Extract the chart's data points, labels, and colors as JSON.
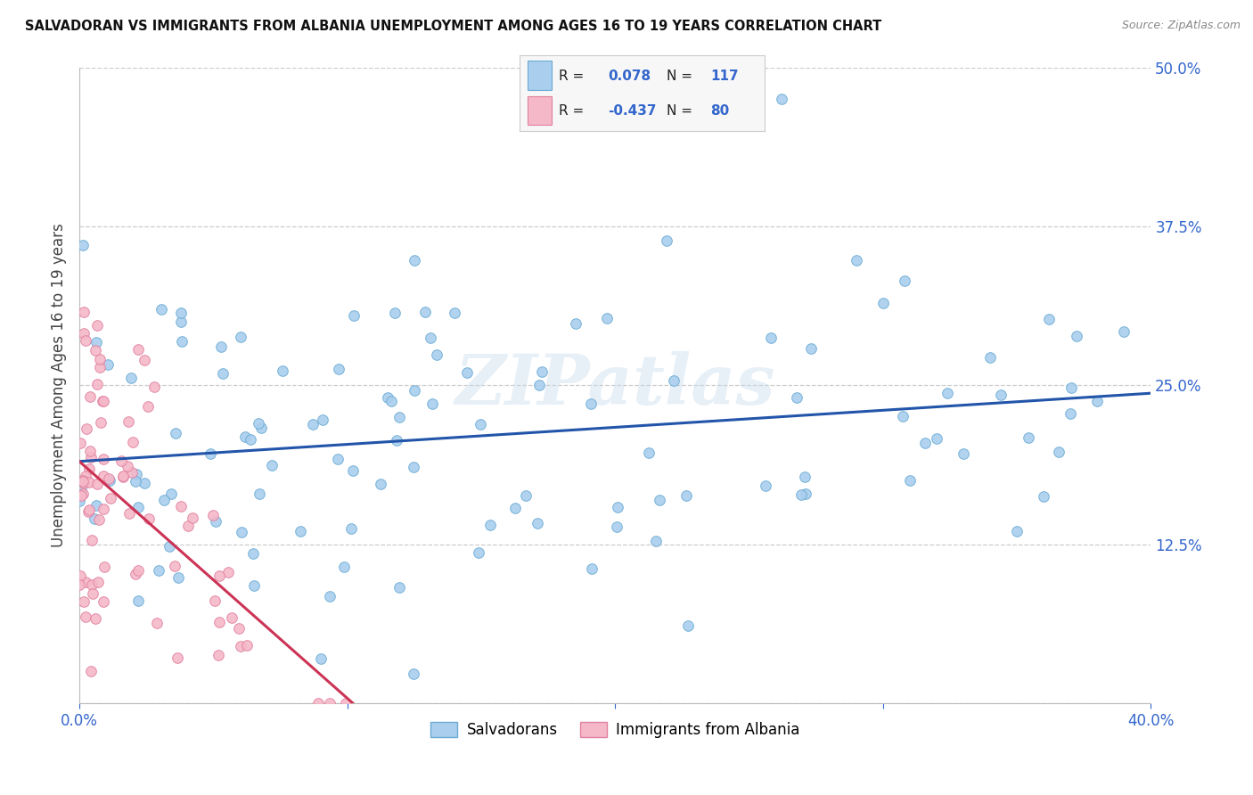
{
  "title": "SALVADORAN VS IMMIGRANTS FROM ALBANIA UNEMPLOYMENT AMONG AGES 16 TO 19 YEARS CORRELATION CHART",
  "source": "Source: ZipAtlas.com",
  "ylabel": "Unemployment Among Ages 16 to 19 years",
  "xlim": [
    0.0,
    0.4
  ],
  "ylim": [
    0.0,
    0.5
  ],
  "xticks": [
    0.0,
    0.1,
    0.2,
    0.3,
    0.4
  ],
  "yticks": [
    0.0,
    0.125,
    0.25,
    0.375,
    0.5
  ],
  "R_salvadoran": 0.078,
  "N_salvadoran": 117,
  "R_albania": -0.437,
  "N_albania": 80,
  "color_salvadoran_fill": "#aacfee",
  "color_salvadoran_edge": "#6aaad4",
  "color_albania_fill": "#f5b8c8",
  "color_albania_edge": "#e080a0",
  "color_sal_line": "#2255aa",
  "color_alb_line": "#cc3355",
  "watermark": "ZIPatlas",
  "background_color": "#ffffff",
  "grid_color": "#cccccc",
  "seed": 12
}
